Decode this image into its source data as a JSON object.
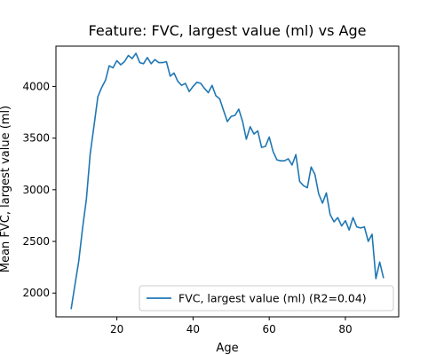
{
  "chart_data": {
    "type": "line",
    "title": "Feature: FVC, largest value (ml) vs Age",
    "xlabel": "Age",
    "ylabel": "Mean FVC, largest value (ml)",
    "xlim": [
      4,
      94
    ],
    "ylim": [
      1770,
      4390
    ],
    "xticks": [
      20,
      40,
      60,
      80
    ],
    "yticks": [
      2000,
      2500,
      3000,
      3500,
      4000
    ],
    "grid": false,
    "legend_position": "lower-right",
    "series": [
      {
        "name": "FVC, largest value (ml) (R2=0.04)",
        "color": "#1f77b4",
        "x": [
          8,
          9,
          10,
          11,
          12,
          13,
          14,
          15,
          16,
          17,
          18,
          19,
          20,
          21,
          22,
          23,
          24,
          25,
          26,
          27,
          28,
          29,
          30,
          31,
          32,
          33,
          34,
          35,
          36,
          37,
          38,
          39,
          40,
          41,
          42,
          43,
          44,
          45,
          46,
          47,
          48,
          49,
          50,
          51,
          52,
          53,
          54,
          55,
          56,
          57,
          58,
          59,
          60,
          61,
          62,
          63,
          64,
          65,
          66,
          67,
          68,
          69,
          70,
          71,
          72,
          73,
          74,
          75,
          76,
          77,
          78,
          79,
          80,
          81,
          82,
          83,
          84,
          85,
          86,
          87,
          88,
          89,
          90
        ],
        "y": [
          1850,
          2080,
          2310,
          2630,
          2910,
          3350,
          3620,
          3900,
          3990,
          4060,
          4200,
          4180,
          4250,
          4210,
          4240,
          4300,
          4270,
          4320,
          4230,
          4220,
          4280,
          4220,
          4260,
          4230,
          4230,
          4240,
          4100,
          4130,
          4050,
          4010,
          4030,
          3950,
          4000,
          4040,
          4030,
          3980,
          3940,
          4010,
          3910,
          3880,
          3770,
          3660,
          3710,
          3720,
          3780,
          3660,
          3490,
          3610,
          3540,
          3570,
          3410,
          3420,
          3510,
          3370,
          3290,
          3280,
          3280,
          3300,
          3240,
          3340,
          3080,
          3040,
          3020,
          3220,
          3150,
          2960,
          2870,
          2970,
          2760,
          2690,
          2730,
          2650,
          2700,
          2610,
          2730,
          2640,
          2630,
          2640,
          2500,
          2570,
          2140,
          2300,
          2150
        ]
      }
    ]
  }
}
